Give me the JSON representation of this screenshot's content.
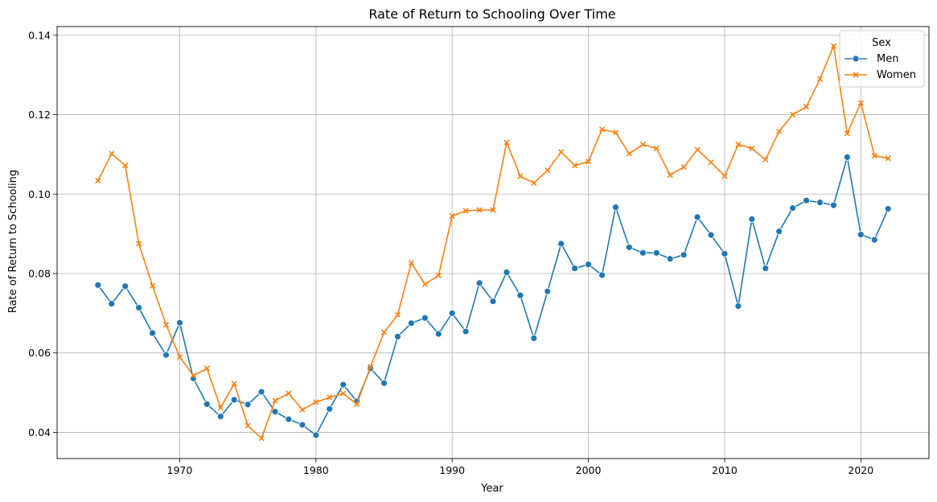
{
  "chart_data": {
    "type": "line",
    "title": "Rate of Return to Schooling Over Time",
    "xlabel": "Year",
    "ylabel": "Rate of Return to Schooling",
    "xlim": [
      1961,
      2025
    ],
    "ylim": [
      0.0334,
      0.1422
    ],
    "x_ticks": [
      1970,
      1980,
      1990,
      2000,
      2010,
      2020
    ],
    "y_ticks": [
      0.04,
      0.06,
      0.08,
      0.1,
      0.12,
      0.14
    ],
    "y_tick_labels": [
      "0.04",
      "0.06",
      "0.08",
      "0.10",
      "0.12",
      "0.14"
    ],
    "grid": true,
    "legend": {
      "title": "Sex",
      "position": "top-right"
    },
    "x": [
      1964,
      1965,
      1966,
      1967,
      1968,
      1969,
      1970,
      1971,
      1972,
      1973,
      1974,
      1975,
      1976,
      1977,
      1978,
      1979,
      1980,
      1981,
      1982,
      1983,
      1984,
      1985,
      1986,
      1987,
      1988,
      1989,
      1990,
      1991,
      1992,
      1993,
      1994,
      1995,
      1996,
      1997,
      1998,
      1999,
      2000,
      2001,
      2002,
      2003,
      2004,
      2005,
      2006,
      2007,
      2008,
      2009,
      2010,
      2011,
      2012,
      2013,
      2014,
      2015,
      2016,
      2017,
      2018,
      2019,
      2020,
      2021,
      2022
    ],
    "series": [
      {
        "name": "Men",
        "color": "#1f77b4",
        "marker": "circle",
        "values": [
          0.0771,
          0.0724,
          0.0768,
          0.0714,
          0.065,
          0.0595,
          0.0676,
          0.0536,
          0.0471,
          0.044,
          0.0482,
          0.047,
          0.0502,
          0.0452,
          0.0433,
          0.0419,
          0.0393,
          0.0459,
          0.052,
          0.0478,
          0.0561,
          0.0524,
          0.0641,
          0.0675,
          0.0688,
          0.0648,
          0.07,
          0.0654,
          0.0776,
          0.073,
          0.0803,
          0.0745,
          0.0637,
          0.0755,
          0.0875,
          0.0813,
          0.0823,
          0.0796,
          0.0967,
          0.0866,
          0.0852,
          0.0852,
          0.0837,
          0.0847,
          0.0942,
          0.0897,
          0.085,
          0.0718,
          0.0937,
          0.0813,
          0.0906,
          0.0965,
          0.0984,
          0.0979,
          0.0972,
          0.1093,
          0.0898,
          0.0885,
          0.0963
        ]
      },
      {
        "name": "Women",
        "color": "#ff7f0e",
        "marker": "x",
        "values": [
          0.1034,
          0.1102,
          0.1072,
          0.0875,
          0.0769,
          0.0671,
          0.059,
          0.0543,
          0.0561,
          0.0462,
          0.0523,
          0.0417,
          0.0385,
          0.048,
          0.0498,
          0.0457,
          0.0476,
          0.0488,
          0.0498,
          0.0471,
          0.0565,
          0.0652,
          0.0696,
          0.0827,
          0.0773,
          0.0795,
          0.0945,
          0.0958,
          0.096,
          0.096,
          0.113,
          0.1045,
          0.1028,
          0.106,
          0.1106,
          0.1072,
          0.1082,
          0.1163,
          0.1155,
          0.1102,
          0.1125,
          0.1115,
          0.1048,
          0.1068,
          0.1112,
          0.108,
          0.1045,
          0.1125,
          0.1115,
          0.1087,
          0.1158,
          0.12,
          0.122,
          0.129,
          0.1373,
          0.1153,
          0.123,
          0.1097,
          0.109
        ]
      }
    ]
  }
}
